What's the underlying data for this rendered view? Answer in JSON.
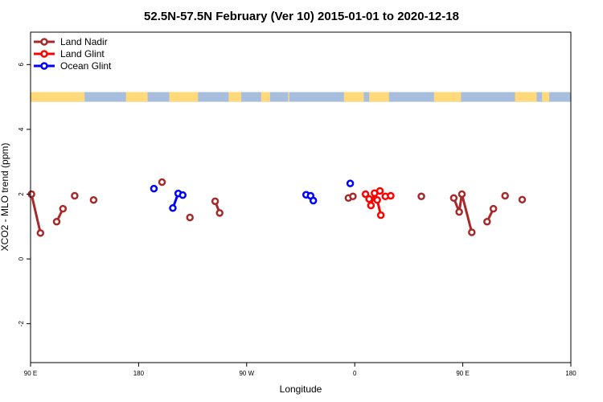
{
  "chart_data": {
    "type": "scatter",
    "title": "52.5N-57.5N February (Ver 10)   2015-01-01 to 2020-12-18",
    "xlabel": "Longitude",
    "ylabel": "XCO2 - MLO trend (ppm)",
    "xlim": [
      -90,
      210
    ],
    "ylim": [
      -3.2,
      7.0
    ],
    "x_ticks": [
      {
        "value": -90,
        "label": "90 E"
      },
      {
        "value": -30,
        "label": "180"
      },
      {
        "value": 30,
        "label": "90 W"
      },
      {
        "value": 90,
        "label": "0"
      },
      {
        "value": 150,
        "label": "90 E"
      },
      {
        "value": 210,
        "label": "180"
      }
    ],
    "y_ticks": [
      {
        "value": -2,
        "label": "-2"
      },
      {
        "value": 0,
        "label": "0"
      },
      {
        "value": 2,
        "label": "2"
      },
      {
        "value": 4,
        "label": "4"
      },
      {
        "value": 6,
        "label": "6"
      }
    ],
    "grid": false,
    "legend_position": "top-left",
    "map_strip": {
      "y_range": [
        4.85,
        5.15
      ],
      "land_color": "#FFD97A",
      "ocean_color": "#A7BEDF",
      "land_segments": [
        [
          -90,
          -60
        ],
        [
          -37,
          -25
        ],
        [
          -13,
          3
        ],
        [
          20,
          27
        ],
        [
          38,
          43
        ],
        [
          53,
          53.7
        ],
        [
          84,
          95
        ],
        [
          98,
          109
        ],
        [
          134,
          149
        ],
        [
          179,
          191
        ],
        [
          194,
          198
        ]
      ]
    },
    "series": [
      {
        "name": "Land Nadir",
        "color": "#A52A2A",
        "segments": [
          [
            [
              -89.5,
              2.0
            ],
            [
              -84.5,
              0.8
            ]
          ],
          [
            [
              -75.5,
              1.15
            ],
            [
              -72.0,
              1.55
            ]
          ],
          [
            [
              -65.5,
              1.95
            ]
          ],
          [
            [
              -55.0,
              1.82
            ]
          ],
          [
            [
              -17.0,
              2.37
            ]
          ],
          [
            [
              -1.5,
              1.28
            ]
          ],
          [
            [
              12.5,
              1.78
            ],
            [
              15.0,
              1.42
            ]
          ],
          [
            [
              86.5,
              1.88
            ],
            [
              89.0,
              1.93
            ]
          ],
          [
            [
              127.0,
              1.93
            ]
          ],
          [
            [
              145.0,
              1.88
            ],
            [
              148.0,
              1.45
            ],
            [
              149.5,
              2.0
            ],
            [
              155.0,
              0.82
            ]
          ],
          [
            [
              163.5,
              1.15
            ],
            [
              167.0,
              1.55
            ]
          ],
          [
            [
              173.5,
              1.95
            ]
          ],
          [
            [
              183.0,
              1.83
            ]
          ]
        ]
      },
      {
        "name": "Land Glint",
        "color": "#FF0000",
        "segments": [
          [
            [
              96.0,
              2.0
            ],
            [
              98.0,
              1.85
            ],
            [
              99.0,
              1.65
            ],
            [
              101.0,
              2.03
            ],
            [
              102.5,
              1.82
            ],
            [
              104.5,
              1.35
            ]
          ],
          [
            [
              104.0,
              2.1
            ]
          ],
          [
            [
              107.0,
              1.93
            ],
            [
              110.0,
              1.95
            ]
          ]
        ]
      },
      {
        "name": "Ocean Glint",
        "color": "#0000FF",
        "segments": [
          [
            [
              -21.5,
              2.17
            ]
          ],
          [
            [
              -11.0,
              1.57
            ],
            [
              -8.0,
              2.02
            ],
            [
              -5.5,
              1.97
            ]
          ],
          [
            [
              63.0,
              1.98
            ],
            [
              65.5,
              1.95
            ],
            [
              67.0,
              1.8
            ]
          ],
          [
            [
              87.5,
              2.33
            ]
          ]
        ]
      }
    ]
  }
}
